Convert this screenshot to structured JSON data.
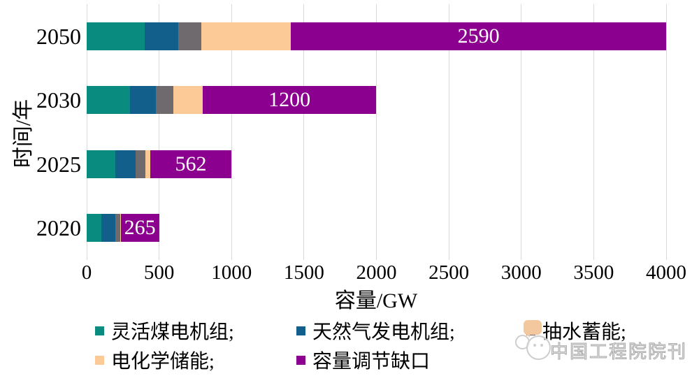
{
  "chart_data": {
    "type": "bar",
    "orientation": "horizontal",
    "title": "",
    "xlabel": "容量/GW",
    "ylabel": "时间/年",
    "categories": [
      "2050",
      "2030",
      "2025",
      "2020"
    ],
    "series": [
      {
        "name": "灵活煤电机组",
        "key": "flexible-coal-units",
        "color": "#098b80",
        "values": [
          400,
          300,
          200,
          100
        ]
      },
      {
        "name": "天然气发电机组",
        "key": "gas-power-units",
        "color": "#135f8c",
        "values": [
          230,
          180,
          140,
          100
        ]
      },
      {
        "name": "抽水蓄能",
        "key": "pumped-storage",
        "color": "#6f6a6d",
        "values": [
          160,
          120,
          65,
          30
        ]
      },
      {
        "name": "电化学储能",
        "key": "electrochemical-storage",
        "color": "#fbca96",
        "values": [
          620,
          200,
          33,
          5
        ]
      },
      {
        "name": "容量调节缺口",
        "key": "capacity-regulation-gap",
        "color": "#8c0090",
        "values": [
          2590,
          1200,
          562,
          265
        ]
      }
    ],
    "bar_labels": {
      "series_key": "capacity-regulation-gap",
      "values": [
        "2590",
        "1200",
        "562",
        "265"
      ],
      "color": "#ffffff"
    },
    "xlim": [
      0,
      4000
    ],
    "xticks": [
      "0",
      "500",
      "1000",
      "1500",
      "2000",
      "2500",
      "3000",
      "3500",
      "4000"
    ],
    "grid": "vertical",
    "gridline_color": "#d9d9d9",
    "legend_position": "bottom",
    "legend": {
      "rows": [
        [
          {
            "label": "灵活煤电机组;",
            "series": 0
          },
          {
            "label": "天然气发电机组;",
            "series": 1
          },
          {
            "label": "抽水蓄能;",
            "series": 2
          }
        ],
        [
          {
            "label": "电化学储能;",
            "series": 3
          },
          {
            "label": "容量调节缺口",
            "series": 4
          }
        ]
      ]
    }
  },
  "watermark": {
    "text": "中国工程院院刊",
    "logo": "chat-bubbles-logo",
    "bubble_color": "#f3c89e"
  }
}
